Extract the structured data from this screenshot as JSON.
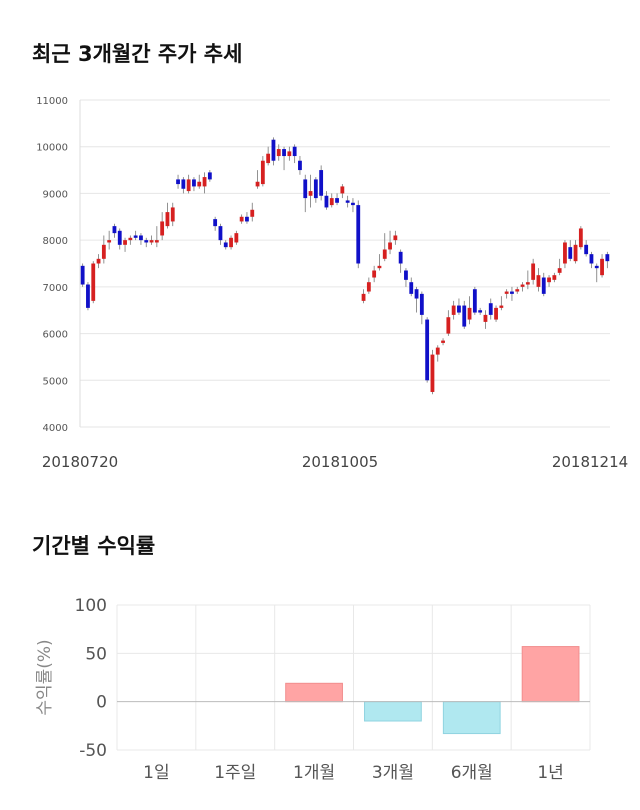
{
  "sections": {
    "price_title": "최근 3개월간 주가 추세",
    "returns_title": "기간별 수익률"
  },
  "chart_data": [
    {
      "type": "candlestick",
      "title": "최근 3개월간 주가 추세",
      "ylim": [
        4000,
        11000
      ],
      "y_ticks": [
        "4000",
        "5000",
        "6000",
        "7000",
        "8000",
        "9000",
        "10000",
        "11000"
      ],
      "x_tick_labels": [
        "20180720",
        "20181005",
        "20181214"
      ],
      "grid": true,
      "up_color": "#d62020",
      "down_color": "#1010c8",
      "candles": [
        [
          7450,
          7050,
          7500,
          7000
        ],
        [
          7050,
          6550,
          7100,
          6500
        ],
        [
          6700,
          7500,
          7550,
          6650
        ],
        [
          7500,
          7600,
          7700,
          7400
        ],
        [
          7600,
          7900,
          8100,
          7500
        ],
        [
          7950,
          8000,
          8200,
          7800
        ],
        [
          8300,
          8150,
          8350,
          8050
        ],
        [
          8200,
          7900,
          8250,
          7800
        ],
        [
          7900,
          8000,
          8050,
          7750
        ],
        [
          8000,
          8050,
          8100,
          7900
        ],
        [
          8100,
          8050,
          8200,
          8000
        ],
        [
          8100,
          8000,
          8150,
          7900
        ],
        [
          8000,
          7950,
          8050,
          7850
        ],
        [
          7950,
          8000,
          8100,
          7900
        ],
        [
          7950,
          8000,
          8300,
          7850
        ],
        [
          8100,
          8400,
          8600,
          8000
        ],
        [
          8300,
          8600,
          8800,
          8250
        ],
        [
          8400,
          8700,
          8800,
          8300
        ],
        [
          9300,
          9200,
          9400,
          9100
        ],
        [
          9300,
          9100,
          9350,
          9000
        ],
        [
          9050,
          9300,
          9400,
          9000
        ],
        [
          9300,
          9150,
          9350,
          9050
        ],
        [
          9150,
          9250,
          9400,
          9100
        ],
        [
          9150,
          9350,
          9450,
          9000
        ],
        [
          9450,
          9300,
          9500,
          9250
        ],
        [
          8450,
          8300,
          8500,
          8200
        ],
        [
          8300,
          8000,
          8350,
          7900
        ],
        [
          7950,
          7850,
          8000,
          7800
        ],
        [
          7850,
          8050,
          8100,
          7800
        ],
        [
          7950,
          8150,
          8200,
          7900
        ],
        [
          8400,
          8500,
          8550,
          8350
        ],
        [
          8500,
          8400,
          8600,
          8350
        ],
        [
          8500,
          8650,
          8800,
          8400
        ],
        [
          9150,
          9250,
          9500,
          9100
        ],
        [
          9200,
          9700,
          9800,
          9150
        ],
        [
          9650,
          9850,
          10000,
          9600
        ],
        [
          10150,
          9700,
          10200,
          9600
        ],
        [
          9800,
          9950,
          10050,
          9700
        ],
        [
          9950,
          9800,
          10000,
          9500
        ],
        [
          9800,
          9900,
          10000,
          9700
        ],
        [
          10000,
          9800,
          10050,
          9650
        ],
        [
          9700,
          9500,
          9800,
          9400
        ],
        [
          9300,
          8900,
          9400,
          8600
        ],
        [
          8950,
          9050,
          9400,
          8700
        ],
        [
          9300,
          8900,
          9350,
          8800
        ],
        [
          9500,
          8950,
          9600,
          8850
        ],
        [
          8950,
          8700,
          9050,
          8650
        ],
        [
          8750,
          8900,
          9000,
          8700
        ],
        [
          8900,
          8800,
          9000,
          8750
        ],
        [
          9000,
          9150,
          9200,
          8900
        ],
        [
          8850,
          8800,
          8950,
          8700
        ],
        [
          8800,
          8750,
          8900,
          8600
        ],
        [
          8750,
          7500,
          8850,
          7400
        ],
        [
          6700,
          6850,
          6950,
          6650
        ],
        [
          6900,
          7100,
          7200,
          6850
        ],
        [
          7200,
          7350,
          7450,
          7100
        ],
        [
          7400,
          7450,
          7700,
          7350
        ],
        [
          7600,
          7800,
          8150,
          7550
        ],
        [
          7800,
          7950,
          8200,
          7700
        ],
        [
          8000,
          8100,
          8200,
          7900
        ],
        [
          7750,
          7500,
          7800,
          7300
        ],
        [
          7350,
          7150,
          7400,
          7000
        ],
        [
          7100,
          6850,
          7200,
          6800
        ],
        [
          6950,
          6750,
          7000,
          6450
        ],
        [
          6850,
          6400,
          6900,
          6200
        ],
        [
          6300,
          5000,
          6350,
          4950
        ],
        [
          4750,
          5550,
          5650,
          4700
        ],
        [
          5550,
          5700,
          5750,
          5400
        ],
        [
          5800,
          5850,
          5900,
          5750
        ],
        [
          6000,
          6350,
          6500,
          5950
        ],
        [
          6400,
          6600,
          6700,
          6300
        ],
        [
          6600,
          6450,
          6750,
          6400
        ],
        [
          6600,
          6150,
          6700,
          6100
        ],
        [
          6300,
          6550,
          6800,
          6200
        ],
        [
          6950,
          6450,
          7000,
          6400
        ],
        [
          6500,
          6450,
          6550,
          6400
        ],
        [
          6250,
          6400,
          6500,
          6100
        ],
        [
          6650,
          6400,
          6750,
          6300
        ],
        [
          6300,
          6550,
          6600,
          6250
        ],
        [
          6550,
          6600,
          6800,
          6500
        ],
        [
          6850,
          6900,
          6950,
          6750
        ],
        [
          6900,
          6850,
          7000,
          6700
        ],
        [
          6900,
          6950,
          7000,
          6850
        ],
        [
          7000,
          7050,
          7100,
          6900
        ],
        [
          7050,
          7100,
          7350,
          6950
        ],
        [
          7150,
          7500,
          7600,
          7050
        ],
        [
          7000,
          7250,
          7400,
          6900
        ],
        [
          7200,
          6850,
          7300,
          6800
        ],
        [
          7100,
          7200,
          7250,
          7000
        ],
        [
          7150,
          7250,
          7300,
          7100
        ],
        [
          7300,
          7400,
          7600,
          7250
        ],
        [
          7500,
          7950,
          8000,
          7400
        ],
        [
          7850,
          7600,
          8000,
          7550
        ],
        [
          7550,
          7900,
          8000,
          7500
        ],
        [
          7850,
          8250,
          8300,
          7800
        ],
        [
          7900,
          7700,
          8000,
          7650
        ],
        [
          7700,
          7500,
          7750,
          7400
        ],
        [
          7450,
          7400,
          7500,
          7100
        ],
        [
          7250,
          7600,
          7700,
          7200
        ],
        [
          7700,
          7550,
          7750,
          7400
        ]
      ]
    },
    {
      "type": "bar",
      "title": "기간별 수익률",
      "categories": [
        "1일",
        "1주일",
        "1개월",
        "3개월",
        "6개월",
        "1년"
      ],
      "values": [
        0,
        0,
        19,
        -20,
        -33,
        57
      ],
      "ylabel": "수익률(%)",
      "ylim": [
        -50,
        100
      ],
      "y_ticks": [
        "100",
        "50",
        "0",
        "-50"
      ],
      "colors": {
        "positive": "#ffa4a4",
        "negative": "#b0e8f0",
        "positive_edge": "#f28e8e",
        "negative_edge": "#8fd3e0",
        "zero_line": "#bbbbbb",
        "grid": "#e8e8e8"
      }
    }
  ]
}
